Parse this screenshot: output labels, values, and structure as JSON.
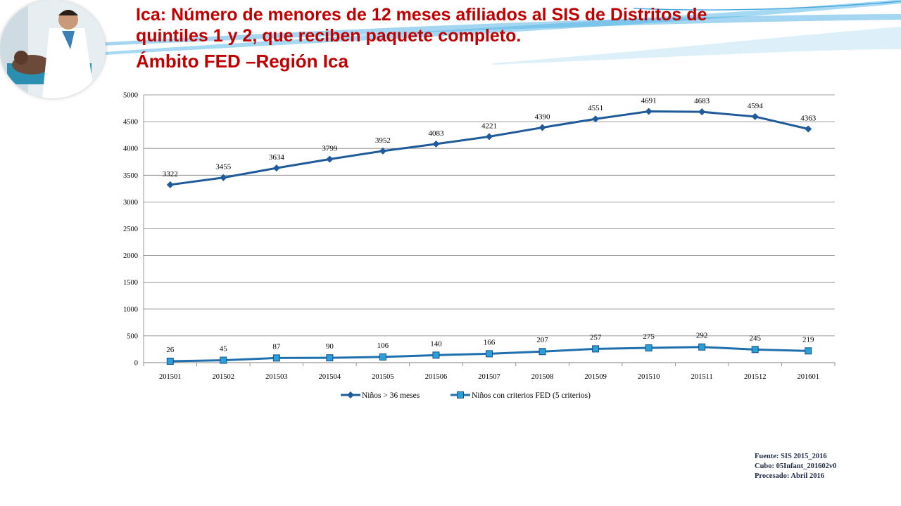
{
  "title": {
    "line1": "Ica: Número de menores de 12 meses afiliados al SIS de Distritos de",
    "line2": "quintiles 1 y 2, que reciben paquete completo.",
    "line3": "Ámbito FED –Región Ica"
  },
  "source": {
    "line1": "Fuente: SIS 2015_2016",
    "line2": "Cubo: 05Infant_201602v0",
    "line3": "Procesado: Abril 2016"
  },
  "colors": {
    "title": "#c00000",
    "series1": "#1f5b9a",
    "series2": "#1f6fae",
    "series2_marker": "#2a9fd8",
    "grid": "#7f7f7f",
    "swoosh": "#5ab4e6"
  },
  "chart_data": {
    "type": "line",
    "categories": [
      "201501",
      "201502",
      "201503",
      "201504",
      "201505",
      "201506",
      "201507",
      "201508",
      "201509",
      "201510",
      "201511",
      "201512",
      "201601"
    ],
    "ylim": [
      0,
      5000
    ],
    "yticks": [
      0,
      500,
      1000,
      1500,
      2000,
      2500,
      3000,
      3500,
      4000,
      4500,
      5000
    ],
    "grid": true,
    "legend_position": "bottom",
    "series": [
      {
        "name": "Niños > 36 meses",
        "marker": "diamond",
        "values": [
          3322,
          3455,
          3634,
          3799,
          3952,
          4083,
          4221,
          4390,
          4551,
          4691,
          4683,
          4594,
          4363
        ]
      },
      {
        "name": "Niños con criterios FED (5 criterios)",
        "marker": "square",
        "values": [
          26,
          45,
          87,
          90,
          106,
          140,
          166,
          207,
          257,
          275,
          292,
          245,
          219
        ]
      }
    ]
  }
}
